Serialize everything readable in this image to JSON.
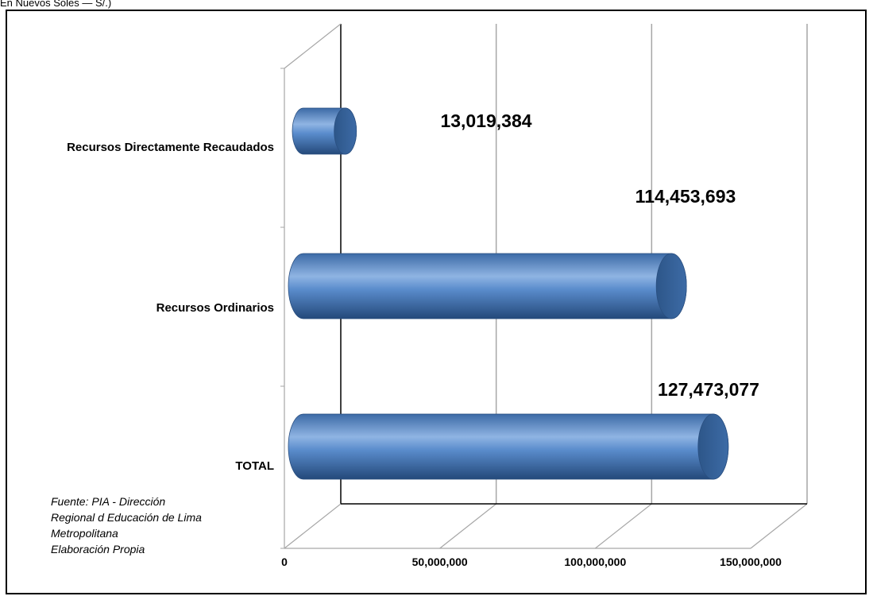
{
  "caption": "En Nuevos Soles — S/.)",
  "source_lines": [
    "Fuente: PIA - Dirección",
    "Regional d Educación de Lima",
    "Metropolitana",
    "Elaboración Propia"
  ],
  "colors": {
    "bar_main": "#4f81bd",
    "bar_dark": "#2f5b8f",
    "bar_light": "#8fb4e3",
    "grid": "#a6a6a6",
    "axis": "#000000"
  },
  "chart_data": {
    "type": "bar",
    "orientation": "horizontal",
    "style": "3d-cylinder",
    "categories": [
      "Recursos Directamente Recaudados",
      "Recursos Ordinarios",
      "TOTAL"
    ],
    "values": [
      13019384,
      114453693,
      127473077
    ],
    "data_labels": [
      "13,019,384",
      "114,453,693",
      "127,473,077"
    ],
    "x_ticks": [
      0,
      50000000,
      100000000,
      150000000
    ],
    "x_tick_labels": [
      "0",
      "50,000,000",
      "100,000,000",
      "150,000,000"
    ],
    "xlim": [
      0,
      150000000
    ],
    "grid": true,
    "legend": "none"
  }
}
